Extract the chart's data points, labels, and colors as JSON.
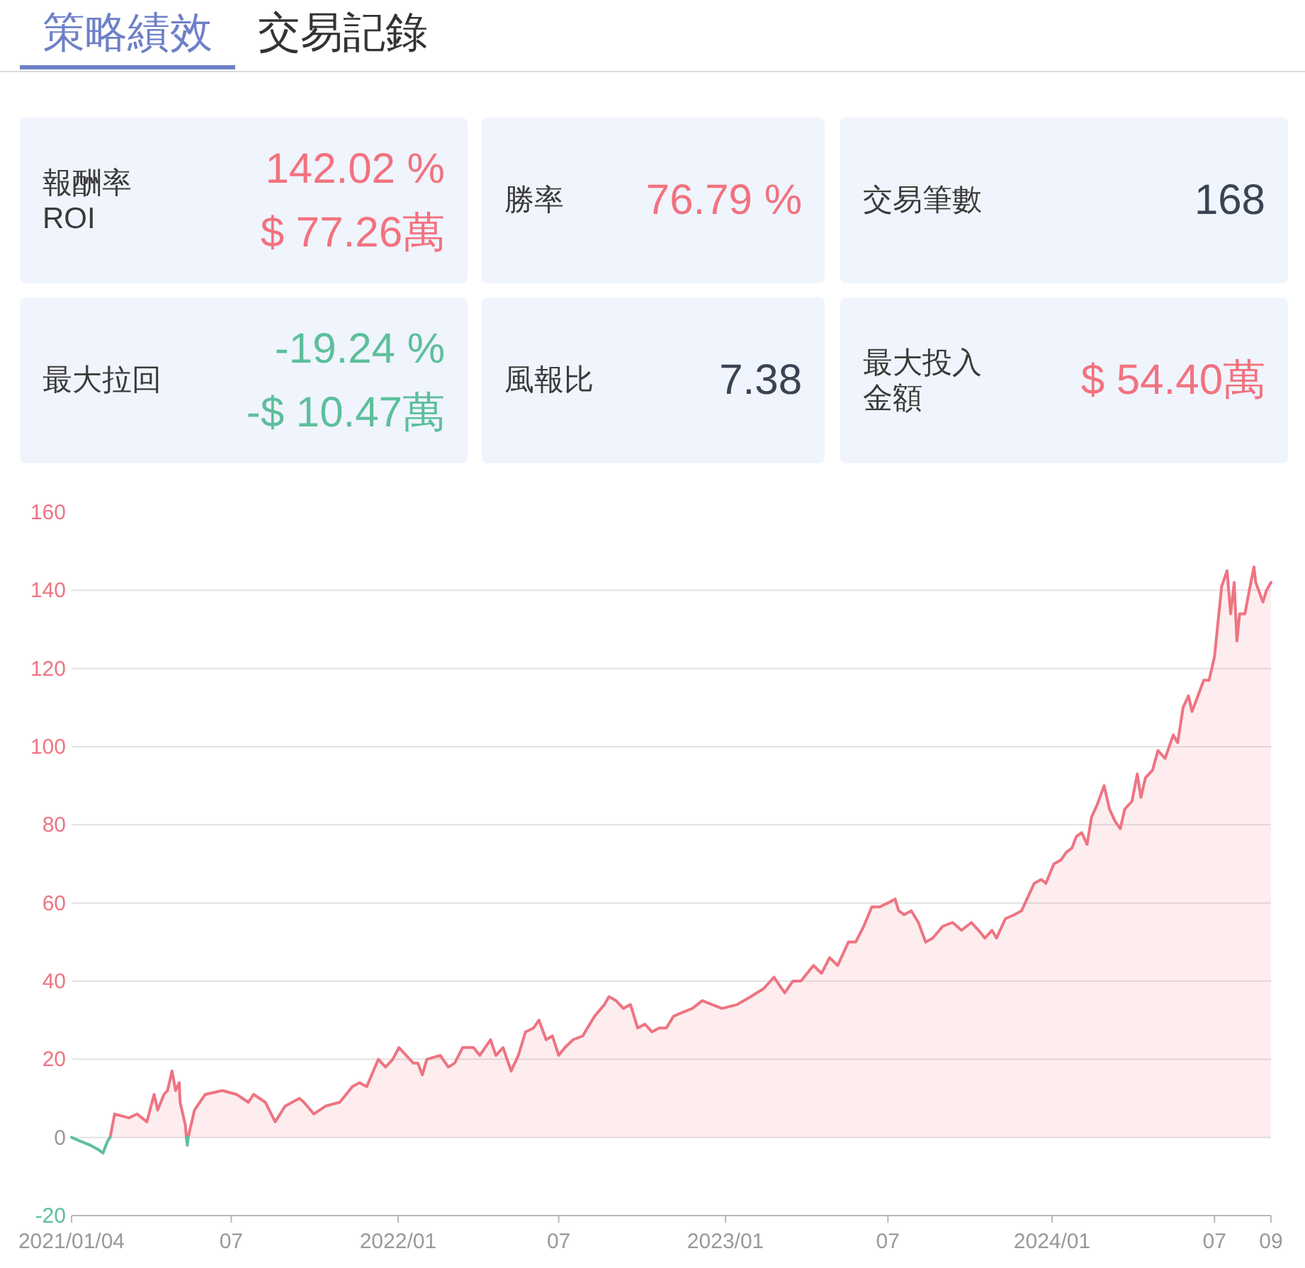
{
  "chart_data": [
    {
      "type": "other",
      "annotations": [
        "策略績效",
        "交易記錄",
        "報酬率",
        "ROI",
        "142.02 %",
        "$ 77.26萬",
        "勝率",
        "76.79 %",
        "交易筆數",
        "168",
        "最大拉回",
        "-19.24 %",
        "-$ 10.47萬",
        "風報比",
        "7.38",
        "最大投入金額",
        "$ 54.40萬"
      ],
      "colors": [
        "#6e80c6",
        "#333333",
        "#3a3a3a",
        "#3a3a3a",
        "#f2727f",
        "#f2727f",
        "#3a3a3a",
        "#f2727f",
        "#3a3a3a",
        "#3b4253",
        "#3a3a3a",
        "#5dbf9c",
        "#5dbf9c",
        "#3a3a3a",
        "#3b4253",
        "#3a3a3a",
        "#f2727f"
      ]
    },
    {
      "type": "line",
      "series": [
        {
          "type": "area",
          "color": "#ee7482",
          "x": [
            "2021-02-16",
            "2021-02-21",
            "2021-03-09",
            "2021-03-18",
            "2021-03-29",
            "2021-04-06",
            "2021-04-10",
            "2021-04-17",
            "2021-04-21",
            "2021-04-26",
            "2021-04-30",
            "2021-05-04",
            "2021-05-05",
            "2021-05-11",
            "2021-05-12",
            "2021-05-14",
            "2021-05-17",
            "2021-05-21",
            "2021-06-02",
            "2021-06-21",
            "2021-07-07",
            "2021-07-20",
            "2021-07-26",
            "2021-08-08",
            "2021-08-19",
            "2021-08-30",
            "2021-09-15",
            "2021-09-20",
            "2021-10-01",
            "2021-10-14",
            "2021-10-30",
            "2021-11-13",
            "2021-11-21",
            "2021-11-29",
            "2021-12-12",
            "2021-12-20",
            "2021-12-28",
            "2022-01-04",
            "2022-01-20",
            "2022-01-25",
            "2022-01-30",
            "2022-02-04",
            "2022-02-19",
            "2022-02-28",
            "2022-03-07",
            "2022-03-16",
            "2022-03-28",
            "2022-04-04",
            "2022-04-16",
            "2022-04-22",
            "2022-04-30",
            "2022-05-09",
            "2022-05-17",
            "2022-05-25",
            "2022-06-03",
            "2022-06-09",
            "2022-06-17",
            "2022-06-24",
            "2022-07-01",
            "2022-07-08",
            "2022-07-17",
            "2022-07-28",
            "2022-08-02",
            "2022-08-10",
            "2022-08-21",
            "2022-08-26",
            "2022-09-03",
            "2022-09-11",
            "2022-09-19",
            "2022-09-27",
            "2022-10-05",
            "2022-10-13",
            "2022-10-21",
            "2022-10-29",
            "2022-11-06",
            "2022-11-16",
            "2022-11-27",
            "2022-12-08",
            "2022-12-19",
            "2022-12-30",
            "2023-01-16",
            "2023-01-31",
            "2023-02-14",
            "2023-02-26",
            "2023-03-04",
            "2023-03-10",
            "2023-03-19",
            "2023-03-28",
            "2023-04-11",
            "2023-04-20",
            "2023-04-29",
            "2023-05-08",
            "2023-05-20",
            "2023-05-28",
            "2023-06-06",
            "2023-06-15",
            "2023-06-24",
            "2023-07-03",
            "2023-07-11",
            "2023-07-15",
            "2023-07-21",
            "2023-07-29",
            "2023-08-06",
            "2023-08-14",
            "2023-08-22",
            "2023-09-02",
            "2023-09-13",
            "2023-09-23",
            "2023-10-04",
            "2023-10-12",
            "2023-10-19",
            "2023-10-27",
            "2023-11-01",
            "2023-11-11",
            "2023-11-21",
            "2023-11-29",
            "2023-12-05",
            "2023-12-13",
            "2023-12-21",
            "2023-12-26",
            "2024-01-04",
            "2024-01-12",
            "2024-01-18",
            "2024-01-24",
            "2024-01-29",
            "2024-02-04",
            "2024-02-10",
            "2024-02-15",
            "2024-02-21",
            "2024-02-29",
            "2024-03-06",
            "2024-03-12",
            "2024-03-18",
            "2024-03-23",
            "2024-03-31",
            "2024-04-06",
            "2024-04-10",
            "2024-04-15",
            "2024-04-23",
            "2024-04-29",
            "2024-05-07",
            "2024-05-16",
            "2024-05-21",
            "2024-05-27",
            "2024-06-02",
            "2024-06-06",
            "2024-06-11",
            "2024-06-19",
            "2024-06-25",
            "2024-07-01",
            "2024-07-05",
            "2024-07-09",
            "2024-07-15",
            "2024-07-19",
            "2024-07-23",
            "2024-07-26",
            "2024-07-29",
            "2024-08-04",
            "2024-08-08",
            "2024-08-14",
            "2024-08-16",
            "2024-08-24",
            "2024-08-28",
            "2024-09-02"
          ],
          "values": [
            0,
            6,
            5,
            6,
            4,
            11,
            7,
            11,
            12,
            17,
            12,
            14,
            9,
            3,
            0,
            0,
            3,
            7,
            11,
            12,
            11,
            9,
            11,
            9,
            4,
            8,
            10,
            9,
            6,
            8,
            9,
            13,
            14,
            13,
            20,
            18,
            20,
            23,
            19,
            19,
            16,
            20,
            21,
            18,
            19,
            23,
            23,
            21,
            25,
            21,
            23,
            17,
            21,
            27,
            28,
            30,
            25,
            26,
            21,
            23,
            25,
            26,
            28,
            31,
            34,
            36,
            35,
            33,
            34,
            28,
            29,
            27,
            28,
            28,
            31,
            32,
            33,
            35,
            34,
            33,
            34,
            36,
            38,
            41,
            39,
            37,
            40,
            40,
            44,
            42,
            46,
            44,
            50,
            50,
            54,
            59,
            59,
            60,
            61,
            58,
            57,
            58,
            55,
            50,
            51,
            54,
            55,
            53,
            55,
            53,
            51,
            53,
            51,
            56,
            57,
            58,
            61,
            65,
            66,
            65,
            70,
            71,
            73,
            74,
            77,
            78,
            75,
            82,
            85,
            90,
            84,
            81,
            79,
            84,
            86,
            93,
            87,
            92,
            94,
            99,
            97,
            103,
            101,
            110,
            113,
            109,
            112,
            117,
            117,
            123,
            132,
            141,
            145,
            134,
            142,
            127,
            134,
            134,
            139,
            146,
            142,
            137,
            140,
            142
          ]
        },
        {
          "type": "line",
          "color": "#5cbf9c",
          "x": [
            "2021-01-04",
            "2021-01-14",
            "2021-01-25",
            "2021-02-02",
            "2021-02-08",
            "2021-02-13",
            "2021-02-16"
          ],
          "values": [
            0,
            -1,
            -2,
            -3,
            -4,
            -1,
            0
          ]
        },
        {
          "type": "line",
          "color": "#5cbf9c",
          "x": [
            "2021-05-12",
            "2021-05-13",
            "2021-05-14"
          ],
          "values": [
            0,
            -2,
            0
          ]
        }
      ],
      "xlim": [
        "2021-01-04",
        "2024-09-02"
      ],
      "xticks": [
        {
          "value": "2021-01-04",
          "label": "2021/01/04"
        },
        {
          "value": "2021-07-01",
          "label": "07"
        },
        {
          "value": "2022-01-03",
          "label": "2022/01"
        },
        {
          "value": "2022-07-01",
          "label": "07"
        },
        {
          "value": "2023-01-03",
          "label": "2023/01"
        },
        {
          "value": "2023-07-03",
          "label": "07"
        },
        {
          "value": "2024-01-02",
          "label": "2024/01"
        },
        {
          "value": "2024-07-01",
          "label": "07"
        },
        {
          "value": "2024-09-02",
          "label": "09"
        }
      ],
      "ylim": [
        -20,
        160
      ],
      "yticks": [
        -20,
        0,
        20,
        40,
        60,
        80,
        100,
        120,
        140,
        160
      ],
      "grid": "y"
    }
  ]
}
